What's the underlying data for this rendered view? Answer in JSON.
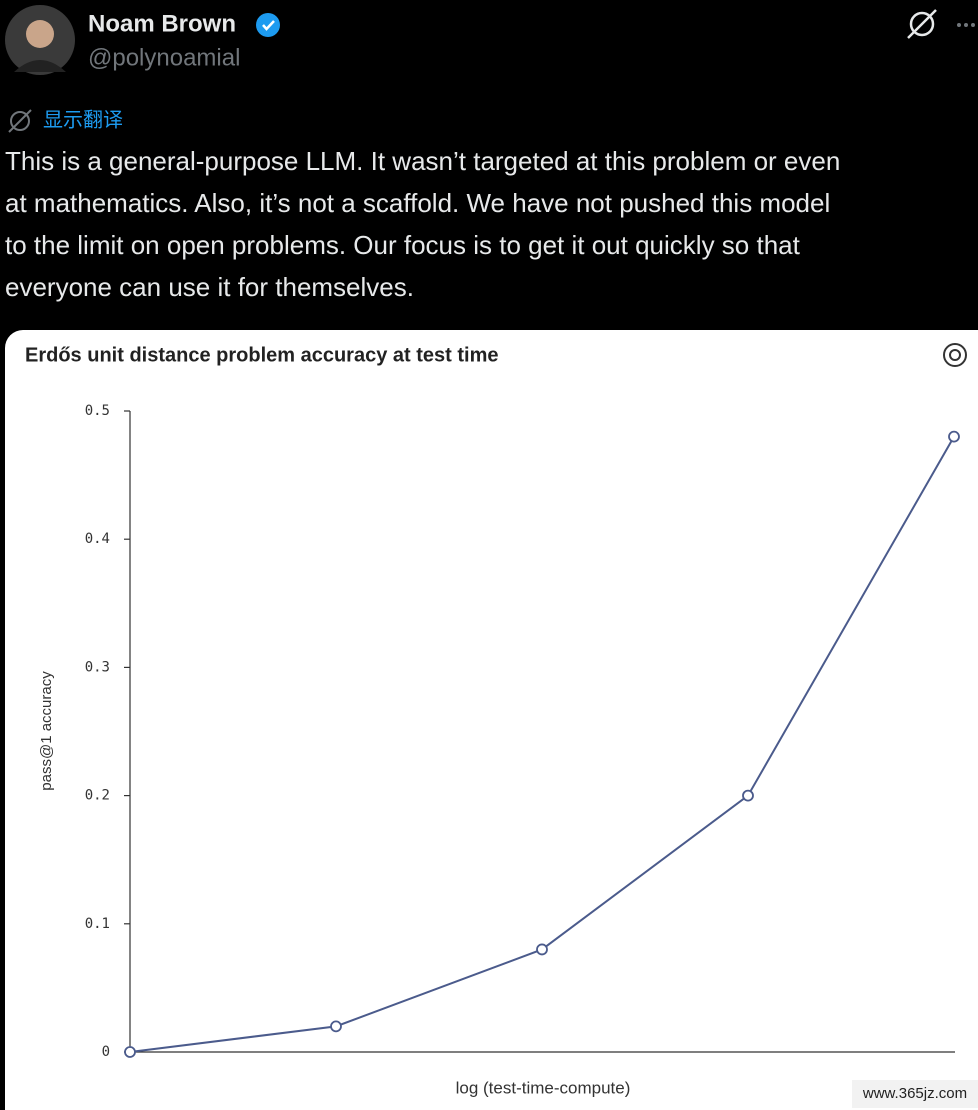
{
  "author": {
    "name": "Noam Brown",
    "handle": "@polynoamial"
  },
  "translate": "显示翻译",
  "body_lines": [
    "This is a general-purpose LLM. It wasn’t targeted at this problem or even",
    "at mathematics. Also, it’s not a scaffold. We have not pushed this model",
    "to the limit on open problems. Our focus is to get it out quickly so that",
    "everyone can use it for themselves."
  ],
  "chart_data": {
    "type": "line",
    "title": "Erdős unit distance problem accuracy at test time",
    "x_label": "log (test-time-compute)",
    "y_label": "pass@1 accuracy",
    "categories": [
      null,
      null,
      null,
      null,
      null
    ],
    "values": [
      0,
      0.02,
      0.08,
      0.2,
      0.48
    ],
    "color": "#4b5b8c",
    "ylim": [
      0,
      0.5
    ],
    "yticks": [
      0,
      0.1,
      0.2,
      0.3,
      0.4,
      0.5
    ]
  },
  "watermark": "www.365jz.com"
}
